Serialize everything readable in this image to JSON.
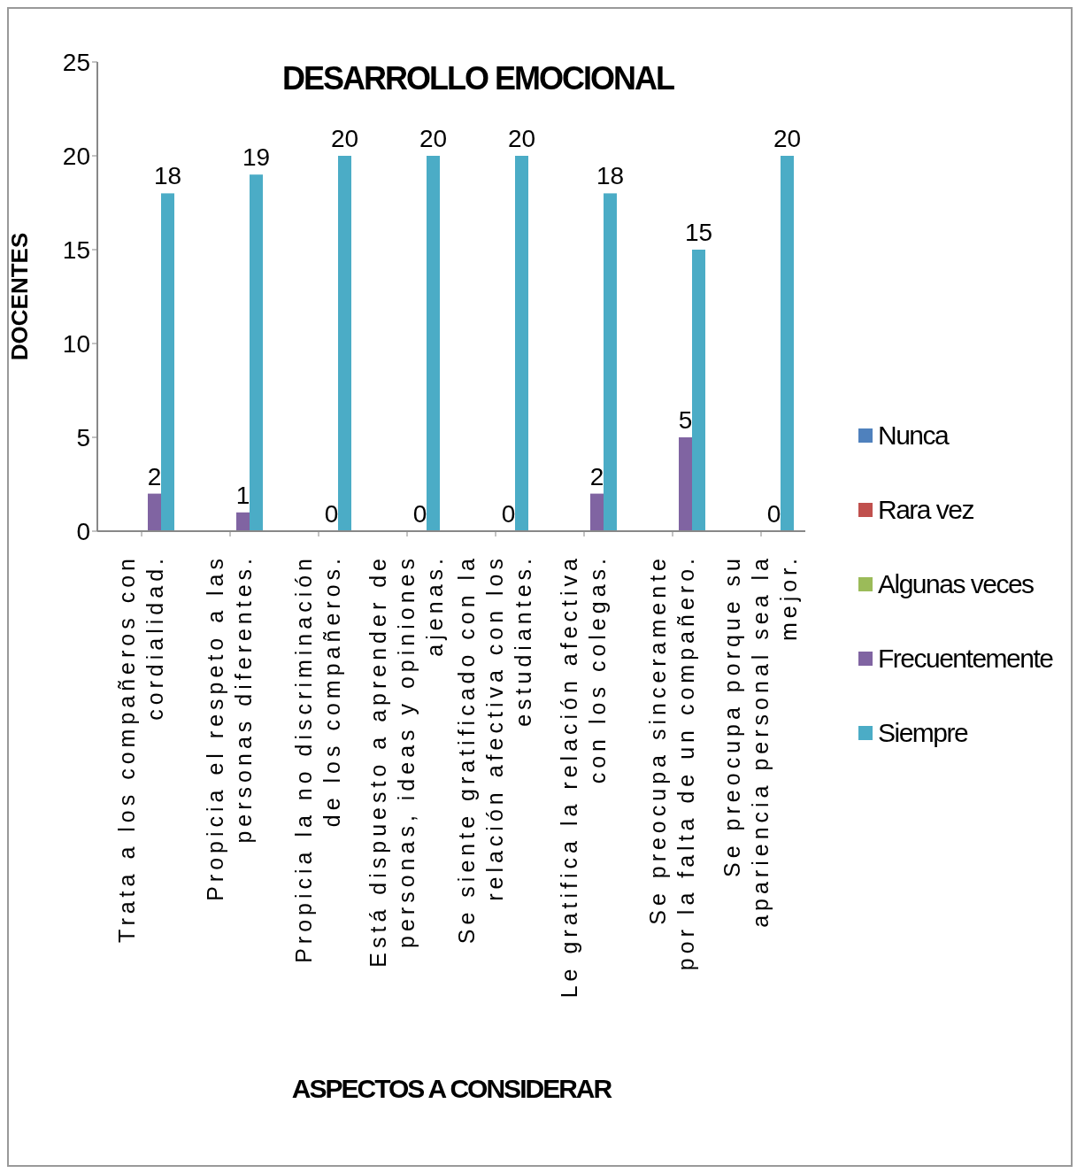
{
  "chart_data": {
    "type": "bar",
    "title": "DESARROLLO EMOCIONAL",
    "xlabel": "ASPECTOS A CONSIDERAR",
    "ylabel": "DOCENTES",
    "categories": [
      "Trata a los compañeros con\ncordialidad.",
      "Propicia el respeto a las\npersonas diferentes.",
      "Propicia la no discriminación\nde los compañeros.",
      "Está dispuesto a aprender de\npersonas, ideas y opiniones\najenas.",
      "Se siente gratificado con la\nrelación afectiva con los\nestudiantes.",
      "Le gratifica la relación afectiva\ncon los colegas.",
      "Se preocupa sinceramente\npor la falta de un compañero.",
      "Se preocupa porque su\napariencia personal sea la\nmejor."
    ],
    "series": [
      {
        "name": "Nunca",
        "color": "#4f81bd",
        "values": [
          null,
          null,
          null,
          null,
          null,
          null,
          null,
          null
        ]
      },
      {
        "name": "Rara vez",
        "color": "#c0504d",
        "values": [
          null,
          null,
          null,
          null,
          null,
          null,
          null,
          null
        ]
      },
      {
        "name": "Algunas veces",
        "color": "#9bbb59",
        "values": [
          null,
          null,
          null,
          null,
          null,
          null,
          null,
          null
        ]
      },
      {
        "name": "Frecuentemente",
        "color": "#8064a2",
        "values": [
          2,
          1,
          0,
          0,
          0,
          2,
          5,
          0
        ],
        "value_labels": [
          "2",
          "1",
          "0",
          "0",
          "0",
          "2",
          "5",
          "0"
        ]
      },
      {
        "name": "Siempre",
        "color": "#4bacc6",
        "values": [
          18,
          19,
          20,
          20,
          20,
          18,
          15,
          20
        ],
        "value_labels": [
          "18",
          "19",
          "20",
          "20",
          "20",
          "18",
          "15",
          "20"
        ]
      }
    ],
    "ylim": [
      0,
      25
    ],
    "yticks": [
      0,
      5,
      10,
      15,
      20,
      25
    ],
    "grid": false,
    "legend": "right"
  }
}
